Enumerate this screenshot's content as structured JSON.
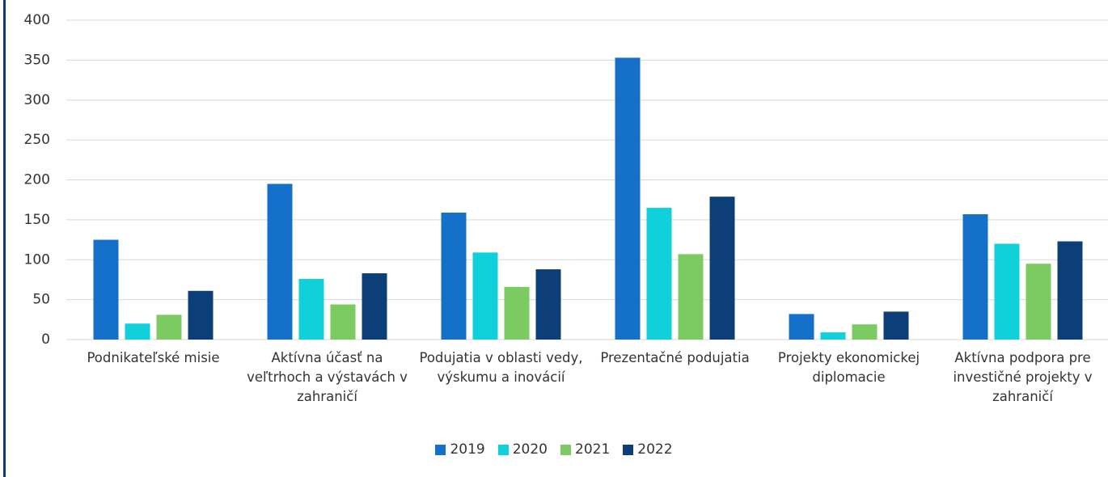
{
  "chart_data": {
    "type": "bar",
    "categories": [
      "Podnikateľské misie",
      "Aktívna účasť na veľtrhoch a výstavách v zahraničí",
      "Podujatia v oblasti vedy, výskumu a inovácií",
      "Prezentačné podujatia",
      "Projekty ekonomickej diplomacie",
      "Aktívna podpora pre investičné projekty v zahraničí"
    ],
    "series": [
      {
        "name": "2019",
        "color": "#1470c8",
        "values": [
          125,
          195,
          159,
          353,
          32,
          157
        ]
      },
      {
        "name": "2020",
        "color": "#10d0dc",
        "values": [
          20,
          76,
          109,
          165,
          9,
          120
        ]
      },
      {
        "name": "2021",
        "color": "#7ccb62",
        "values": [
          31,
          44,
          66,
          107,
          19,
          95
        ]
      },
      {
        "name": "2022",
        "color": "#0c3f78",
        "values": [
          61,
          83,
          88,
          179,
          35,
          123
        ]
      }
    ],
    "ylim": [
      0,
      400
    ],
    "yticks": [
      0,
      50,
      100,
      150,
      200,
      250,
      300,
      350,
      400
    ],
    "grid": true,
    "legend": "bottom"
  }
}
